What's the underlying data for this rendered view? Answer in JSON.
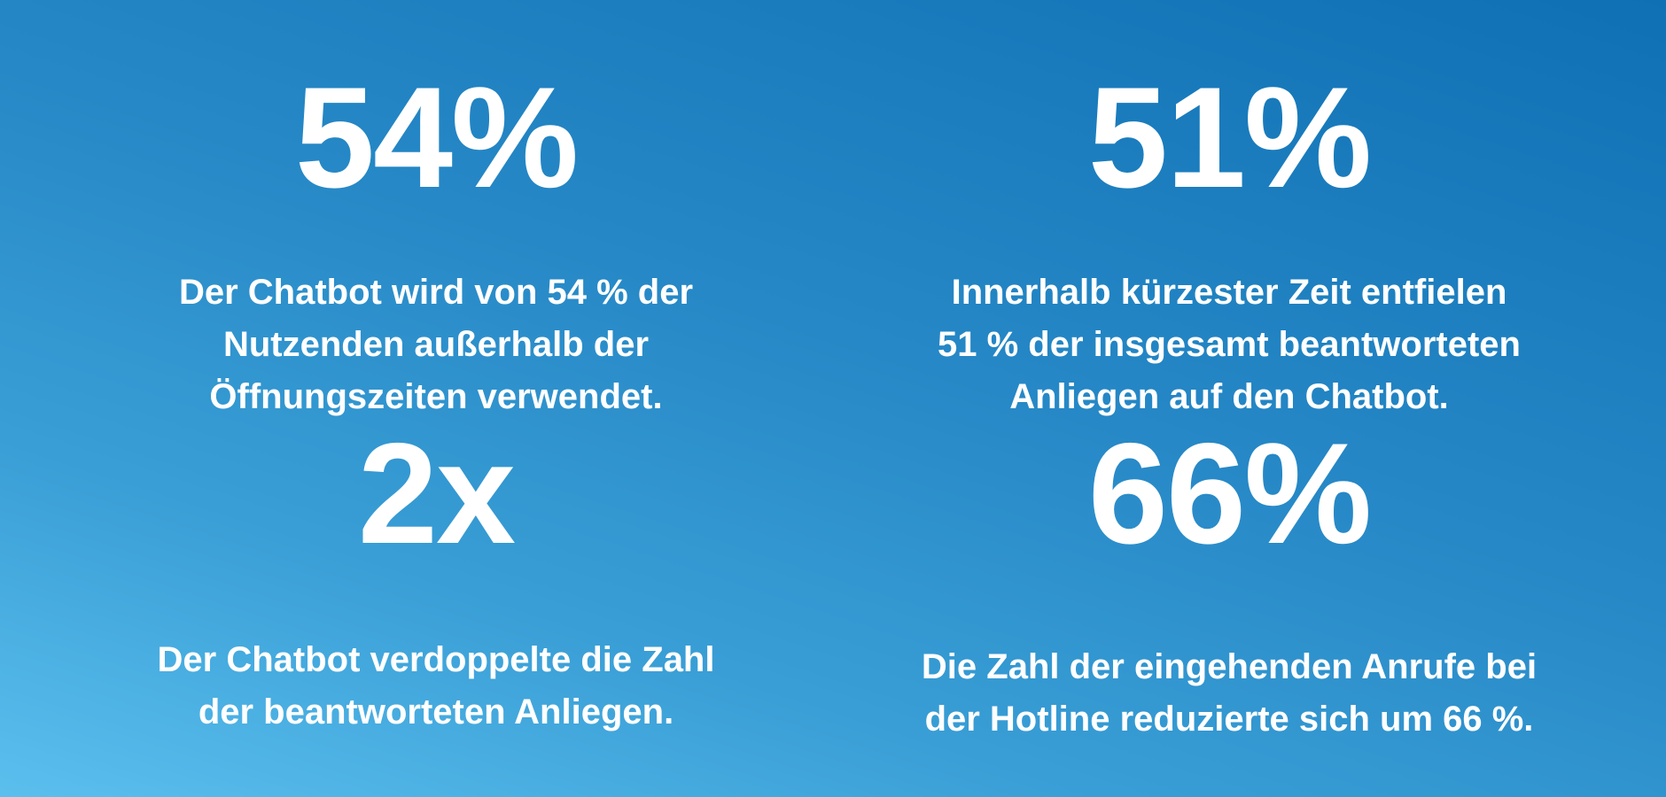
{
  "stats": [
    {
      "value": "54%",
      "description": "Der Chatbot wird von 54 % der\nNutzenden außerhalb der\nÖffnungszeiten verwendet."
    },
    {
      "value": "51%",
      "description": "Innerhalb kürzester Zeit entfielen\n51 % der insgesamt beantworteten\nAnliegen auf den Chatbot."
    },
    {
      "value": "2x",
      "description": "Der Chatbot verdoppelte die Zahl\nder beantworteten Anliegen."
    },
    {
      "value": "66%",
      "description": "Die Zahl der eingehenden Anrufe bei\nder Hotline reduzierte sich um 66 %."
    }
  ],
  "colors": {
    "background_light": "#5bbfee",
    "background_dark": "#0f71b4",
    "text": "#ffffff"
  }
}
